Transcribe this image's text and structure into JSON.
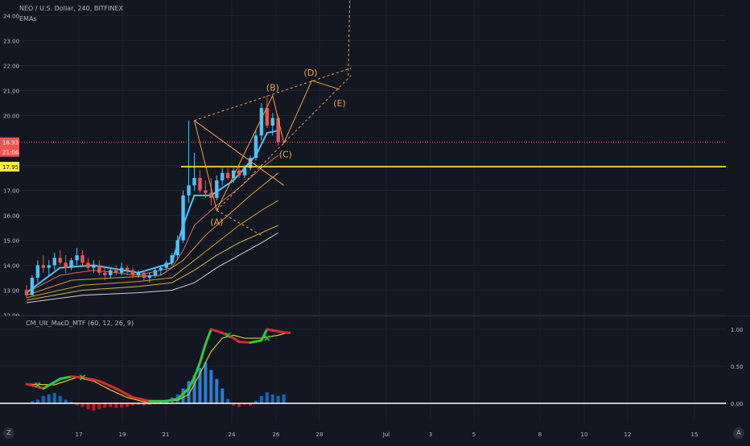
{
  "header": {
    "symbol": "NEO / U.S. Dollar, 240, BITFINEX",
    "indicator": "EMAs"
  },
  "macd_legend": "CM_Ult_MacD_MTF (60, 12, 26, 9)",
  "price_axis": {
    "ticks": [
      "24.00",
      "23.00",
      "22.00",
      "21.00",
      "20.00",
      "18.00",
      "17.00",
      "16.00",
      "15.00",
      "14.00",
      "13.00",
      "12.00"
    ]
  },
  "last_price": {
    "value": "18.93",
    "countdown": "21:06",
    "color": "#ef5350"
  },
  "horizontal_level": {
    "value": "17.95",
    "color": "#ffeb3b"
  },
  "macd_axis": {
    "ticks": [
      "1.00",
      "0.50",
      "0.00"
    ]
  },
  "time_axis": {
    "ticks": [
      "17",
      "19",
      "21",
      "24",
      "26",
      "28",
      "Jul",
      "3",
      "5",
      "8",
      "10",
      "12",
      "15"
    ]
  },
  "corner_buttons": {
    "left": "Z",
    "right": "A"
  },
  "wave_labels": [
    "(A)",
    "(B)",
    "(C)",
    "(D)",
    "(E)"
  ],
  "colors": {
    "up": "#4fc3f7",
    "down": "#ef5350",
    "accent": "#f0a04b",
    "macd_up": "#2ecc40",
    "macd_down": "#d32f2f",
    "signal": "#e6c229"
  },
  "chart_data": {
    "type": "candlestick",
    "ylim": [
      12.5,
      24.2
    ],
    "x_range": [
      0,
      57
    ],
    "candles": [
      [
        0,
        13.0,
        13.2,
        12.7,
        12.8
      ],
      [
        1,
        12.8,
        13.6,
        12.8,
        13.5
      ],
      [
        2,
        13.5,
        14.2,
        13.3,
        14.0
      ],
      [
        3,
        14.0,
        14.4,
        13.7,
        13.9
      ],
      [
        4,
        13.9,
        14.2,
        13.6,
        14.0
      ],
      [
        5,
        14.0,
        14.5,
        13.8,
        14.3
      ],
      [
        6,
        14.3,
        14.6,
        14.0,
        14.1
      ],
      [
        7,
        14.1,
        14.4,
        13.7,
        13.9
      ],
      [
        8,
        13.9,
        14.3,
        13.8,
        14.2
      ],
      [
        9,
        14.2,
        14.7,
        14.0,
        14.4
      ],
      [
        10,
        14.4,
        14.6,
        14.0,
        14.1
      ],
      [
        11,
        14.1,
        14.3,
        13.8,
        13.9
      ],
      [
        12,
        13.9,
        14.2,
        13.7,
        14.0
      ],
      [
        13,
        14.0,
        14.2,
        13.6,
        13.7
      ],
      [
        14,
        13.7,
        13.9,
        13.4,
        13.6
      ],
      [
        15,
        13.6,
        13.9,
        13.5,
        13.8
      ],
      [
        16,
        13.8,
        14.0,
        13.6,
        13.7
      ],
      [
        17,
        13.7,
        14.1,
        13.6,
        13.9
      ],
      [
        18,
        13.9,
        14.0,
        13.6,
        13.8
      ],
      [
        19,
        13.8,
        13.9,
        13.5,
        13.6
      ],
      [
        20,
        13.6,
        13.8,
        13.5,
        13.7
      ],
      [
        21,
        13.7,
        13.8,
        13.4,
        13.5
      ],
      [
        22,
        13.5,
        13.7,
        13.3,
        13.6
      ],
      [
        23,
        13.6,
        13.9,
        13.5,
        13.8
      ],
      [
        24,
        13.8,
        14.0,
        13.6,
        13.9
      ],
      [
        25,
        13.9,
        14.2,
        13.8,
        14.1
      ],
      [
        26,
        14.1,
        14.5,
        14.0,
        14.4
      ],
      [
        27,
        14.4,
        15.2,
        14.2,
        15.0
      ],
      [
        28,
        15.0,
        17.0,
        14.9,
        16.8
      ],
      [
        29,
        16.8,
        19.8,
        16.5,
        17.2
      ],
      [
        30,
        17.2,
        18.5,
        17.0,
        17.5
      ],
      [
        31,
        17.5,
        17.8,
        16.9,
        17.0
      ],
      [
        32,
        17.0,
        17.4,
        16.7,
        16.9
      ],
      [
        33,
        16.9,
        17.5,
        16.4,
        16.7
      ],
      [
        34,
        16.7,
        17.6,
        16.6,
        17.4
      ],
      [
        35,
        17.4,
        17.9,
        17.2,
        17.7
      ],
      [
        36,
        17.7,
        17.9,
        17.4,
        17.5
      ],
      [
        37,
        17.5,
        17.9,
        17.3,
        17.8
      ],
      [
        38,
        17.8,
        18.0,
        17.5,
        17.6
      ],
      [
        39,
        17.6,
        18.0,
        17.5,
        17.9
      ],
      [
        40,
        17.9,
        18.4,
        17.8,
        18.3
      ],
      [
        41,
        18.3,
        19.4,
        18.2,
        19.2
      ],
      [
        42,
        19.2,
        20.5,
        19.0,
        20.3
      ],
      [
        43,
        20.3,
        20.8,
        19.5,
        19.6
      ],
      [
        44,
        19.6,
        20.1,
        19.2,
        19.9
      ],
      [
        45,
        19.9,
        20.0,
        18.8,
        18.93
      ]
    ],
    "emas": [
      {
        "values": [
          [
            0,
            12.9
          ],
          [
            6,
            13.9
          ],
          [
            12,
            14.0
          ],
          [
            20,
            13.7
          ],
          [
            26,
            14.1
          ],
          [
            28,
            15.6
          ],
          [
            30,
            16.8
          ],
          [
            33,
            16.8
          ],
          [
            37,
            17.4
          ],
          [
            41,
            18.4
          ],
          [
            43,
            19.3
          ],
          [
            45,
            19.4
          ]
        ]
      },
      {
        "values": [
          [
            0,
            12.9
          ],
          [
            6,
            13.6
          ],
          [
            12,
            13.8
          ],
          [
            20,
            13.6
          ],
          [
            26,
            13.9
          ],
          [
            28,
            14.6
          ],
          [
            30,
            15.6
          ],
          [
            34,
            16.4
          ],
          [
            38,
            17.1
          ],
          [
            42,
            17.9
          ],
          [
            45,
            18.4
          ]
        ]
      },
      {
        "values": [
          [
            0,
            12.8
          ],
          [
            8,
            13.4
          ],
          [
            16,
            13.5
          ],
          [
            24,
            13.6
          ],
          [
            28,
            14.2
          ],
          [
            32,
            15.2
          ],
          [
            36,
            16.0
          ],
          [
            40,
            16.8
          ],
          [
            45,
            17.7
          ]
        ]
      },
      {
        "values": [
          [
            0,
            12.7
          ],
          [
            10,
            13.2
          ],
          [
            20,
            13.35
          ],
          [
            26,
            13.5
          ],
          [
            30,
            14.2
          ],
          [
            34,
            14.9
          ],
          [
            38,
            15.6
          ],
          [
            42,
            16.2
          ],
          [
            45,
            16.6
          ]
        ]
      },
      {
        "values": [
          [
            0,
            12.6
          ],
          [
            10,
            13.0
          ],
          [
            20,
            13.15
          ],
          [
            26,
            13.3
          ],
          [
            30,
            13.8
          ],
          [
            34,
            14.4
          ],
          [
            38,
            14.9
          ],
          [
            42,
            15.3
          ],
          [
            45,
            15.6
          ]
        ]
      },
      {
        "values": [
          [
            0,
            12.5
          ],
          [
            10,
            12.8
          ],
          [
            20,
            12.9
          ],
          [
            26,
            13.0
          ],
          [
            30,
            13.3
          ],
          [
            34,
            13.9
          ],
          [
            38,
            14.4
          ],
          [
            42,
            14.9
          ],
          [
            45,
            15.3
          ]
        ]
      }
    ],
    "macd": {
      "ylim": [
        -0.2,
        1.1
      ],
      "macd_line": [
        [
          0,
          0.26
        ],
        [
          3,
          0.2
        ],
        [
          6,
          0.33
        ],
        [
          8,
          0.36
        ],
        [
          10,
          0.35
        ],
        [
          13,
          0.3
        ],
        [
          16,
          0.2
        ],
        [
          19,
          0.08
        ],
        [
          22,
          0.03
        ],
        [
          25,
          0.03
        ],
        [
          27,
          0.06
        ],
        [
          29,
          0.2
        ],
        [
          30,
          0.35
        ],
        [
          31,
          0.55
        ],
        [
          32,
          0.8
        ],
        [
          33,
          1.0
        ],
        [
          35,
          0.95
        ],
        [
          37,
          0.88
        ],
        [
          38,
          0.83
        ],
        [
          40,
          0.82
        ],
        [
          42,
          0.85
        ],
        [
          43,
          1.0
        ],
        [
          45,
          0.97
        ],
        [
          47,
          0.95
        ]
      ],
      "signal_line": [
        [
          0,
          0.26
        ],
        [
          5,
          0.25
        ],
        [
          9,
          0.35
        ],
        [
          12,
          0.3
        ],
        [
          15,
          0.18
        ],
        [
          18,
          0.08
        ],
        [
          21,
          0.02
        ],
        [
          24,
          0.02
        ],
        [
          27,
          0.04
        ],
        [
          29,
          0.12
        ],
        [
          31,
          0.4
        ],
        [
          33,
          0.7
        ],
        [
          35,
          0.88
        ],
        [
          37,
          0.92
        ],
        [
          39,
          0.88
        ],
        [
          42,
          0.88
        ],
        [
          45,
          0.92
        ],
        [
          47,
          0.96
        ]
      ],
      "histogram": [
        [
          1,
          0.03
        ],
        [
          2,
          0.05
        ],
        [
          3,
          0.1
        ],
        [
          4,
          0.12
        ],
        [
          5,
          0.14
        ],
        [
          6,
          0.1
        ],
        [
          7,
          0.05
        ],
        [
          8,
          0.02
        ],
        [
          9,
          -0.03
        ],
        [
          10,
          -0.05
        ],
        [
          11,
          -0.08
        ],
        [
          12,
          -0.1
        ],
        [
          13,
          -0.08
        ],
        [
          14,
          -0.06
        ],
        [
          15,
          -0.05
        ],
        [
          16,
          -0.06
        ],
        [
          17,
          -0.06
        ],
        [
          18,
          -0.05
        ],
        [
          19,
          -0.03
        ],
        [
          20,
          -0.02
        ],
        [
          21,
          -0.03
        ],
        [
          22,
          -0.02
        ],
        [
          23,
          -0.01
        ],
        [
          24,
          0.02
        ],
        [
          25,
          0.05
        ],
        [
          26,
          0.08
        ],
        [
          27,
          0.12
        ],
        [
          28,
          0.2
        ],
        [
          29,
          0.3
        ],
        [
          30,
          0.38
        ],
        [
          31,
          0.48
        ],
        [
          32,
          0.55
        ],
        [
          33,
          0.45
        ],
        [
          34,
          0.33
        ],
        [
          35,
          0.2
        ],
        [
          36,
          0.06
        ],
        [
          37,
          -0.03
        ],
        [
          38,
          -0.05
        ],
        [
          39,
          -0.02
        ],
        [
          40,
          -0.03
        ],
        [
          41,
          0.03
        ],
        [
          42,
          0.1
        ],
        [
          43,
          0.15
        ],
        [
          44,
          0.12
        ],
        [
          45,
          0.1
        ],
        [
          46,
          0.12
        ]
      ]
    }
  }
}
